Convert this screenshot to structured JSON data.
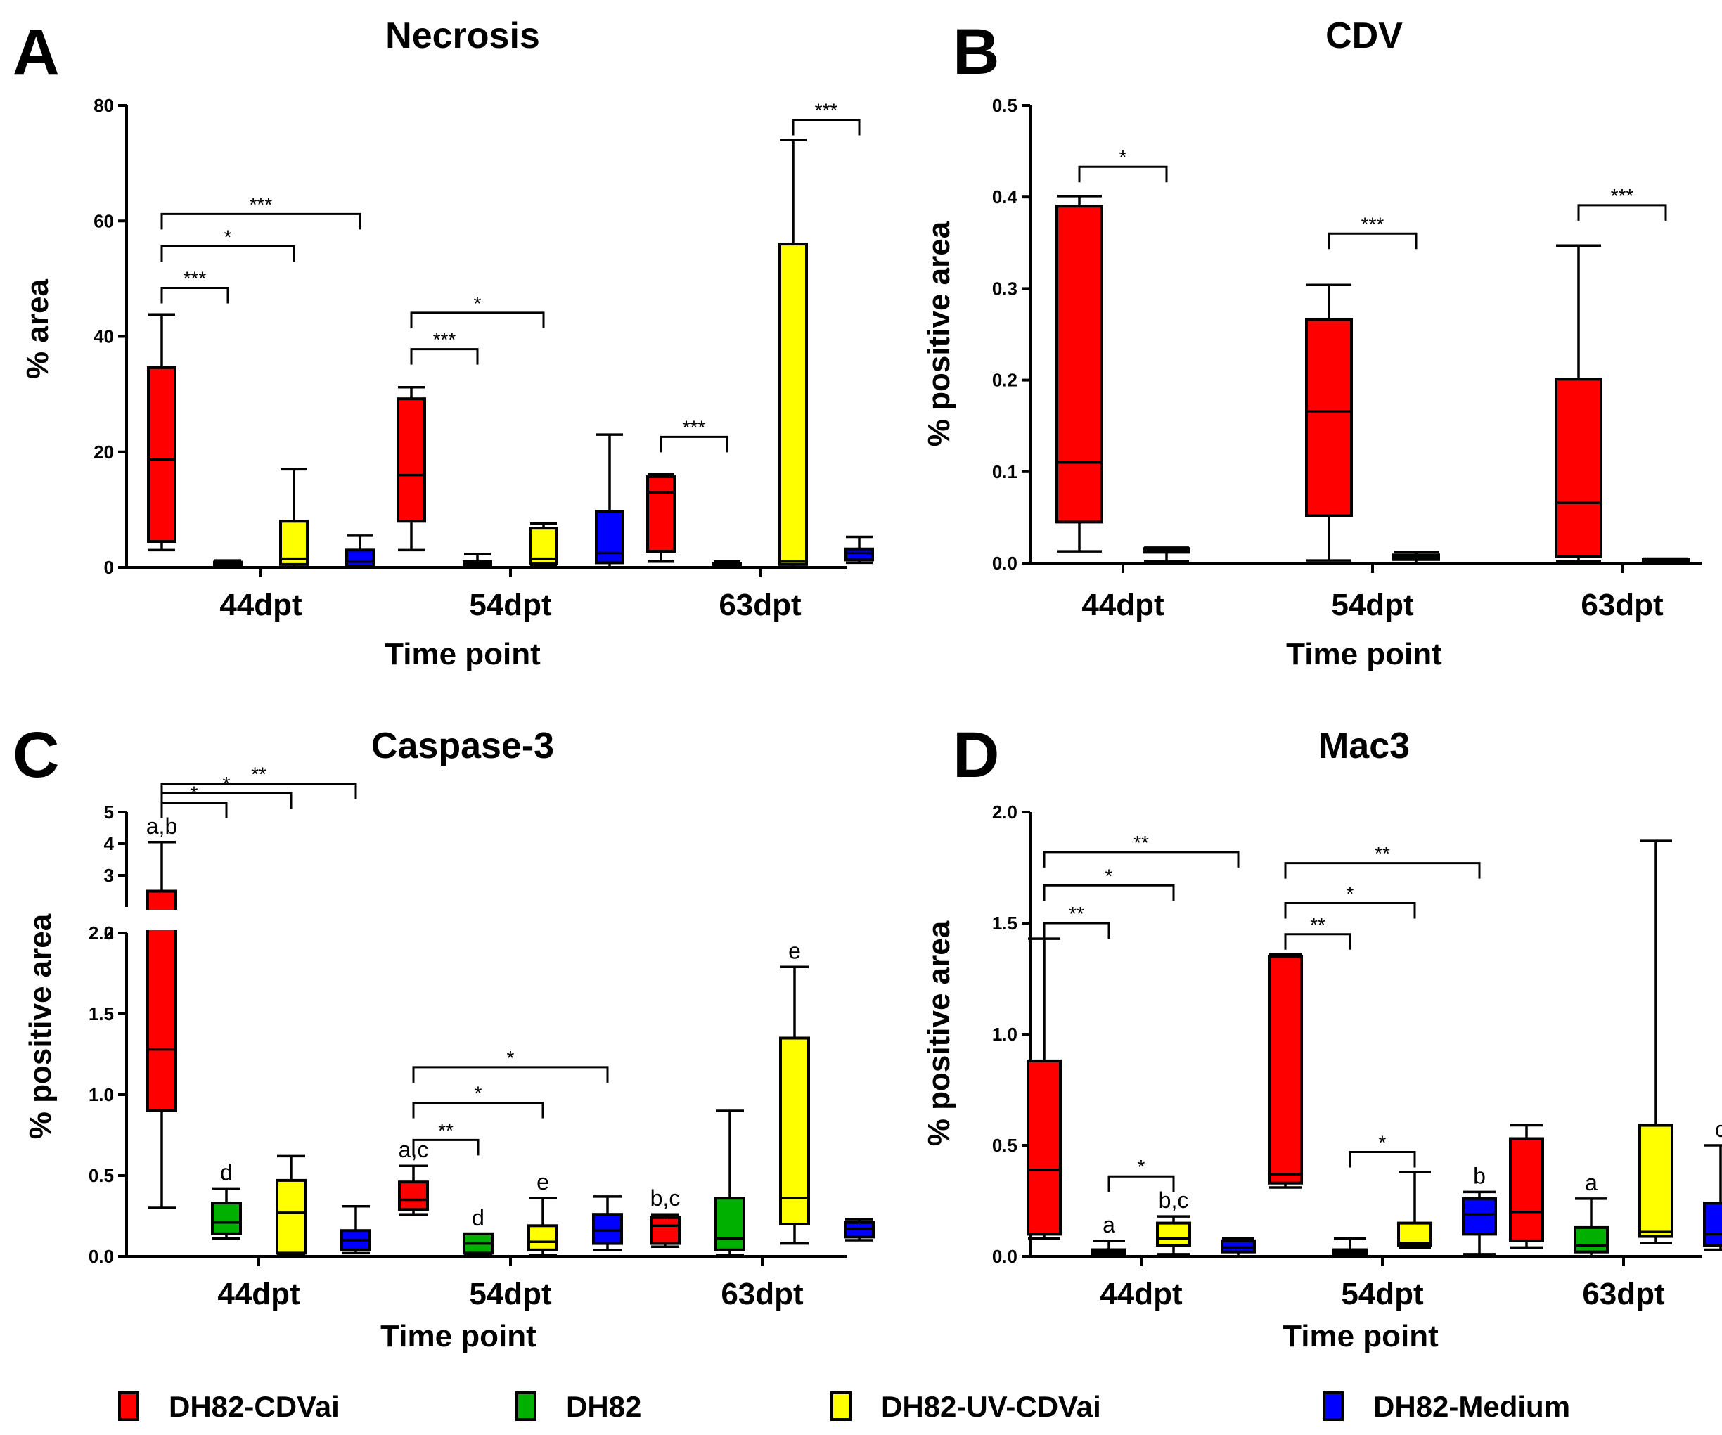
{
  "colors": {
    "DH82-CDVai": "#ff0000",
    "DH82": "#00b000",
    "DH82-UV-CDVai": "#ffff00",
    "DH82-Medium": "#0000ff"
  },
  "legend": [
    {
      "name": "DH82-CDVai",
      "color": "#ff0000"
    },
    {
      "name": "DH82",
      "color": "#00b000"
    },
    {
      "name": "DH82-UV-CDVai",
      "color": "#ffff00"
    },
    {
      "name": "DH82-Medium",
      "color": "#0000ff"
    }
  ],
  "chart_data": [
    {
      "panel": "A",
      "type": "box",
      "title": "Necrosis",
      "xlabel": "Time point",
      "ylabel": "% area",
      "ylim": [
        0,
        80
      ],
      "yticks": [
        0,
        20,
        40,
        60,
        80
      ],
      "ytick_labels": [
        "0",
        "20",
        "40",
        "60",
        "80"
      ],
      "categories": [
        "44dpt",
        "54dpt",
        "63dpt"
      ],
      "series": [
        "DH82-CDVai",
        "DH82",
        "DH82-UV-CDVai",
        "DH82-Medium"
      ],
      "boxes": [
        [
          [
            3,
            4.5,
            18.7,
            34.6,
            43.8
          ],
          [
            0,
            0.3,
            0.6,
            0.9,
            1.2
          ],
          [
            0,
            0.5,
            1.5,
            8,
            17
          ],
          [
            0,
            0.2,
            1,
            3,
            5.5
          ]
        ],
        [
          [
            3,
            8,
            16,
            29.2,
            31.2
          ],
          [
            0,
            0.2,
            0.6,
            1.0,
            2.3
          ],
          [
            0.2,
            0.6,
            1.5,
            6.8,
            7.6
          ],
          [
            0,
            0.8,
            2.5,
            9.7,
            23
          ]
        ],
        [
          [
            1,
            2.8,
            13,
            15.7,
            16.1
          ],
          [
            0,
            0.2,
            0.5,
            0.7,
            1.0
          ],
          [
            0,
            0.5,
            1,
            56,
            74
          ],
          [
            0.8,
            1.3,
            2.5,
            3.2,
            5.3
          ]
        ]
      ],
      "brackets": [
        {
          "cat": 0,
          "from": 0,
          "to": 1,
          "y": 48.4,
          "label": "***"
        },
        {
          "cat": 0,
          "from": 0,
          "to": 2,
          "y": 55.6,
          "label": "*"
        },
        {
          "cat": 0,
          "from": 0,
          "to": 3,
          "y": 61.2,
          "label": "***"
        },
        {
          "cat": 1,
          "from": 0,
          "to": 1,
          "y": 37.8,
          "label": "***"
        },
        {
          "cat": 1,
          "from": 0,
          "to": 2,
          "y": 44.1,
          "label": "*"
        },
        {
          "cat": 2,
          "from": 0,
          "to": 1,
          "y": 22.6,
          "label": "***"
        },
        {
          "cat": 2,
          "from": 2,
          "to": 3,
          "y": 77.5,
          "label": "***"
        }
      ],
      "letters": []
    },
    {
      "panel": "B",
      "type": "box",
      "title": "CDV",
      "xlabel": "Time point",
      "ylabel": "% positive area",
      "ylim": [
        0,
        0.5
      ],
      "yticks": [
        0,
        0.1,
        0.2,
        0.3,
        0.4,
        0.5
      ],
      "ytick_labels": [
        "0.0",
        "0.1",
        "0.2",
        "0.3",
        "0.4",
        "0.5"
      ],
      "categories": [
        "44dpt",
        "54dpt",
        "63dpt"
      ],
      "series": [
        "DH82-CDVai",
        "DH82"
      ],
      "boxes": [
        [
          [
            0.013,
            0.045,
            0.11,
            0.39,
            0.401
          ],
          [
            0.002,
            0.012,
            0.014,
            0.016,
            0.017
          ]
        ],
        [
          [
            0.003,
            0.052,
            0.166,
            0.266,
            0.304
          ],
          [
            0.0,
            0.004,
            0.007,
            0.009,
            0.012
          ]
        ],
        [
          [
            0.002,
            0.007,
            0.066,
            0.201,
            0.347
          ],
          [
            0.0,
            0.002,
            0.003,
            0.004,
            0.005
          ]
        ]
      ],
      "brackets": [
        {
          "cat": 0,
          "from": 0,
          "to": 1,
          "y": 0.433,
          "label": "*"
        },
        {
          "cat": 1,
          "from": 0,
          "to": 1,
          "y": 0.36,
          "label": "***"
        },
        {
          "cat": 2,
          "from": 0,
          "to": 1,
          "y": 0.391,
          "label": "***"
        }
      ],
      "letters": []
    },
    {
      "panel": "C",
      "type": "box",
      "title": "Caspase-3",
      "xlabel": "Time point",
      "ylabel": "% positive area",
      "ylim": [
        0,
        2.0
      ],
      "yticks": [
        0,
        0.5,
        1.0,
        1.5,
        2.0
      ],
      "ytick_labels": [
        "0.0",
        "0.5",
        "1.0",
        "1.5",
        "2.0"
      ],
      "ybreak": {
        "ylim": [
          2,
          5
        ],
        "yticks": [
          2,
          3,
          4,
          5
        ],
        "ytick_labels": [
          "2",
          "3",
          "4",
          "5"
        ]
      },
      "categories": [
        "44dpt",
        "54dpt",
        "63dpt"
      ],
      "series": [
        "DH82-CDVai",
        "DH82",
        "DH82-UV-CDVai",
        "DH82-Medium"
      ],
      "boxes": [
        [
          [
            0.3,
            0.9,
            1.28,
            2.5,
            4.05
          ],
          [
            0.11,
            0.14,
            0.21,
            0.33,
            0.42
          ],
          [
            0.01,
            0.02,
            0.27,
            0.47,
            0.62
          ],
          [
            0.02,
            0.04,
            0.1,
            0.16,
            0.31
          ]
        ],
        [
          [
            0.26,
            0.29,
            0.35,
            0.46,
            0.56
          ],
          [
            0.01,
            0.02,
            0.08,
            0.14,
            0.14
          ],
          [
            0.01,
            0.04,
            0.09,
            0.19,
            0.36
          ],
          [
            0.04,
            0.08,
            0.16,
            0.26,
            0.37
          ]
        ],
        [
          [
            0.06,
            0.08,
            0.19,
            0.24,
            0.26
          ],
          [
            0.01,
            0.04,
            0.11,
            0.36,
            0.9
          ],
          [
            0.08,
            0.2,
            0.36,
            1.35,
            1.79
          ],
          [
            0.1,
            0.12,
            0.17,
            0.21,
            0.23
          ]
        ]
      ],
      "brackets": [
        {
          "cat": 0,
          "from": 0,
          "to": 1,
          "y": 5.3,
          "label": "*"
        },
        {
          "cat": 0,
          "from": 0,
          "to": 2,
          "y": 5.6,
          "label": "*"
        },
        {
          "cat": 0,
          "from": 0,
          "to": 3,
          "y": 5.9,
          "label": "**"
        },
        {
          "cat": 1,
          "from": 0,
          "to": 1,
          "y": 0.72,
          "label": "**"
        },
        {
          "cat": 1,
          "from": 0,
          "to": 2,
          "y": 0.95,
          "label": "*"
        },
        {
          "cat": 1,
          "from": 0,
          "to": 3,
          "y": 1.17,
          "label": "*"
        }
      ],
      "letters": [
        {
          "cat": 0,
          "series": 0,
          "y": 4.05,
          "text": "a,b"
        },
        {
          "cat": 0,
          "series": 1,
          "y": 0.42,
          "text": "d"
        },
        {
          "cat": 1,
          "series": 0,
          "y": 0.56,
          "text": "a,c"
        },
        {
          "cat": 1,
          "series": 1,
          "y": 0.14,
          "text": "d"
        },
        {
          "cat": 1,
          "series": 2,
          "y": 0.36,
          "text": "e"
        },
        {
          "cat": 2,
          "series": 0,
          "y": 0.26,
          "text": "b,c"
        },
        {
          "cat": 2,
          "series": 2,
          "y": 1.79,
          "text": "e"
        }
      ]
    },
    {
      "panel": "D",
      "type": "box",
      "title": "Mac3",
      "xlabel": "Time point",
      "ylabel": "% positive area",
      "ylim": [
        0,
        2.0
      ],
      "yticks": [
        0,
        0.5,
        1.0,
        1.5,
        2.0
      ],
      "ytick_labels": [
        "0.0",
        "0.5",
        "1.0",
        "1.5",
        "2.0"
      ],
      "categories": [
        "44dpt",
        "54dpt",
        "63dpt"
      ],
      "series": [
        "DH82-CDVai",
        "DH82",
        "DH82-UV-CDVai",
        "DH82-Medium"
      ],
      "boxes": [
        [
          [
            0.08,
            0.1,
            0.39,
            0.88,
            1.43
          ],
          [
            0.0,
            0.01,
            0.02,
            0.03,
            0.07
          ],
          [
            0.01,
            0.05,
            0.08,
            0.15,
            0.18
          ],
          [
            0.0,
            0.02,
            0.04,
            0.07,
            0.08
          ]
        ],
        [
          [
            0.31,
            0.33,
            0.37,
            1.35,
            1.36
          ],
          [
            0.0,
            0.01,
            0.02,
            0.03,
            0.08
          ],
          [
            0.04,
            0.05,
            0.06,
            0.15,
            0.38
          ],
          [
            0.01,
            0.1,
            0.19,
            0.26,
            0.29
          ]
        ],
        [
          [
            0.04,
            0.07,
            0.2,
            0.53,
            0.59
          ],
          [
            0.0,
            0.02,
            0.05,
            0.13,
            0.26
          ],
          [
            0.06,
            0.09,
            0.11,
            0.59,
            1.87
          ],
          [
            0.03,
            0.05,
            0.1,
            0.24,
            0.5
          ]
        ]
      ],
      "brackets": [
        {
          "cat": 0,
          "from": 0,
          "to": 1,
          "y": 1.5,
          "label": "**"
        },
        {
          "cat": 0,
          "from": 0,
          "to": 2,
          "y": 1.67,
          "label": "*"
        },
        {
          "cat": 0,
          "from": 0,
          "to": 3,
          "y": 1.82,
          "label": "**"
        },
        {
          "cat": 0,
          "from": 1,
          "to": 2,
          "y": 0.36,
          "label": "*"
        },
        {
          "cat": 1,
          "from": 0,
          "to": 1,
          "y": 1.45,
          "label": "**"
        },
        {
          "cat": 1,
          "from": 0,
          "to": 2,
          "y": 1.59,
          "label": "*"
        },
        {
          "cat": 1,
          "from": 0,
          "to": 3,
          "y": 1.77,
          "label": "**"
        },
        {
          "cat": 1,
          "from": 1,
          "to": 2,
          "y": 0.47,
          "label": "*"
        }
      ],
      "letters": [
        {
          "cat": 0,
          "series": 1,
          "y": 0.07,
          "text": "a"
        },
        {
          "cat": 0,
          "series": 2,
          "y": 0.18,
          "text": "b,c"
        },
        {
          "cat": 1,
          "series": 3,
          "y": 0.29,
          "text": "b"
        },
        {
          "cat": 2,
          "series": 1,
          "y": 0.26,
          "text": "a"
        },
        {
          "cat": 2,
          "series": 3,
          "y": 0.5,
          "text": "c"
        }
      ]
    }
  ]
}
